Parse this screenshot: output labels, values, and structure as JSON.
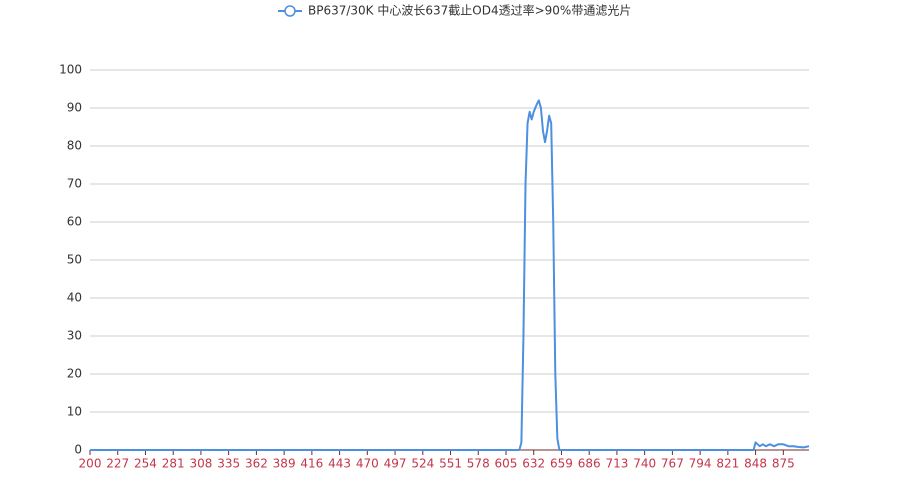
{
  "chart_data": {
    "type": "line",
    "x": [
      200,
      610,
      618,
      620,
      622,
      624,
      626,
      628,
      630,
      632,
      635,
      637,
      639,
      641,
      643,
      645,
      647,
      649,
      651,
      653,
      655,
      657,
      700,
      800,
      846,
      848,
      850,
      852,
      855,
      858,
      862,
      866,
      870,
      875,
      880,
      885,
      890,
      895,
      900
    ],
    "series": [
      {
        "name": "BP637/30K 中心波长637截止OD4透过率>90%带通滤光片",
        "color": "#4d8fe0",
        "values": [
          0,
          0,
          0,
          2,
          30,
          70,
          86,
          89,
          87,
          89,
          91,
          92,
          90,
          84,
          81,
          84,
          88,
          86,
          60,
          20,
          3,
          0,
          0,
          0,
          0,
          2,
          1.5,
          1,
          1.5,
          1,
          1.5,
          1,
          1.5,
          1.5,
          1,
          1,
          0.8,
          0.7,
          1
        ]
      }
    ],
    "xlim": [
      200,
      900
    ],
    "xticks": [
      200,
      227,
      254,
      281,
      308,
      335,
      362,
      389,
      416,
      443,
      470,
      497,
      524,
      551,
      578,
      605,
      632,
      659,
      686,
      713,
      740,
      767,
      794,
      821,
      848,
      875
    ],
    "ylim": [
      0,
      100
    ],
    "yticks": [
      0,
      10,
      20,
      30,
      40,
      50,
      60,
      70,
      80,
      90,
      100
    ],
    "grid": true
  }
}
